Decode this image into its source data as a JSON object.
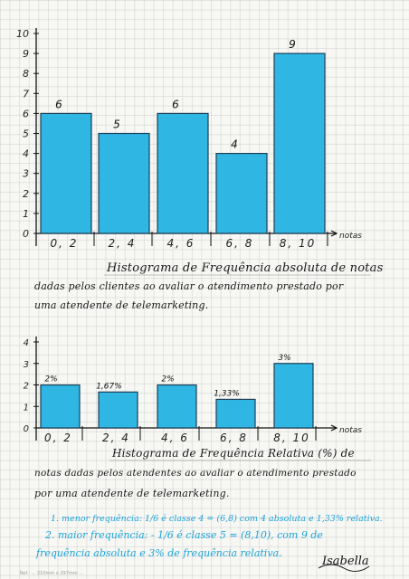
{
  "chart_data": [
    {
      "type": "bar",
      "categories": [
        "0, 2",
        "2, 4",
        "4, 6",
        "6, 8",
        "8, 10"
      ],
      "values": [
        6,
        5,
        6,
        4,
        9
      ],
      "data_labels": [
        "6",
        "5",
        "6",
        "4",
        "9"
      ],
      "y_ticks": [
        "0",
        "1",
        "2",
        "3",
        "4",
        "5",
        "6",
        "7",
        "8",
        "9",
        "10"
      ],
      "ylim": [
        0,
        10
      ],
      "xlabel": "notas",
      "ylabel": "",
      "title": "Histograma de Frequência absoluta de notas dadas pelos clientes ao avaliar o atendimento prestado por uma atendente de telemarketing."
    },
    {
      "type": "bar",
      "categories": [
        "0, 2",
        "2, 4",
        "4, 6",
        "6, 8",
        "8, 10"
      ],
      "values": [
        2,
        1.67,
        2,
        1.33,
        3
      ],
      "data_labels": [
        "2%",
        "1,67%",
        "2%",
        "1,33%",
        "3%"
      ],
      "y_ticks": [
        "0",
        "1",
        "2",
        "3",
        "4"
      ],
      "ylim": [
        0,
        4
      ],
      "xlabel": "notas",
      "ylabel": "",
      "title": "Histograma de Frequência Relativa (%) de notas dadas pelos atendentes ao avaliar o atendimento prestado por uma atendente de telemarketing."
    }
  ],
  "captions": {
    "c1_line1": "Histograma de Frequência absoluta de notas",
    "c1_line2": "dadas pelos clientes ao avaliar o atendimento prestado por",
    "c1_line3": "uma atendente de telemarketing.",
    "c2_line1": "Histograma de Frequência Relativa (%) de",
    "c2_line2": "notas dadas pelos atendentes ao avaliar o atendimento prestado",
    "c2_line3": "por uma atendente de telemarketing."
  },
  "notes": {
    "line1": "1. menor frequência: 1/6 é classe 4 = (6,8) com 4 absoluta e 1,33% relativa.",
    "line2": "2. maior frequência: - 1/6 é classe 5 = (8,10), com 9 de",
    "line3": "frequência absoluta e 3% de frequência relativa."
  },
  "signature": "Isabella",
  "footer": "Ref.: ... 210mm x 297mm ..."
}
